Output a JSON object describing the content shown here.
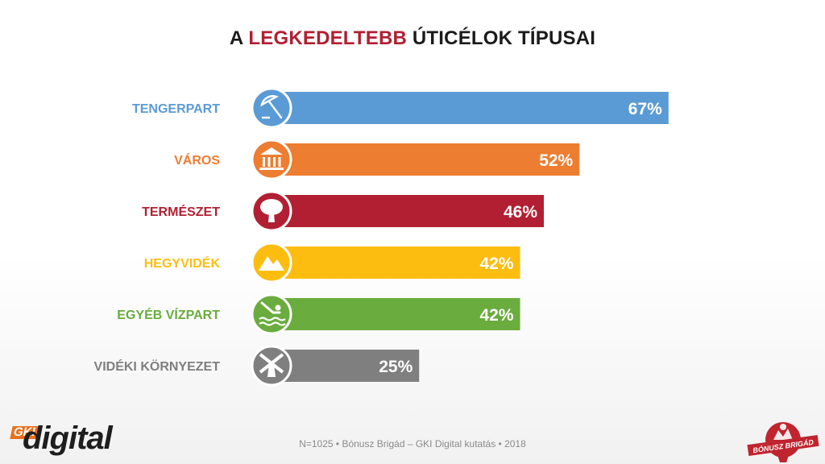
{
  "title": {
    "part1": "A ",
    "highlight": "LEGKEDELTEBB",
    "part2": " ÚTICÉLOK TÍPUSAI"
  },
  "chart_data": {
    "type": "bar",
    "orientation": "horizontal",
    "title": "A LEGKEDELTEBB ÚTICÉLOK TÍPUSAI",
    "categories": [
      "TENGERPART",
      "VÁROS",
      "TERMÉSZET",
      "HEGYVIDÉK",
      "EGYÉB VÍZPART",
      "VIDÉKI KÖRNYEZET"
    ],
    "values": [
      67,
      52,
      46,
      42,
      42,
      25
    ],
    "value_labels": [
      "67%",
      "52%",
      "46%",
      "42%",
      "42%",
      "25%"
    ],
    "colors": [
      "#5b9bd5",
      "#ed7d31",
      "#b21f32",
      "#fdbd10",
      "#6aac3e",
      "#7f7f7f"
    ],
    "icons": [
      "beach-umbrella-icon",
      "city-building-icon",
      "tree-icon",
      "mountain-icon",
      "swimmer-icon",
      "windmill-icon"
    ],
    "xlim": [
      0,
      70
    ],
    "grid": false,
    "legend": "none"
  },
  "footer": {
    "note": "N=1025 • Bónusz Brigád – GKI Digital kutatás • 2018"
  },
  "logos": {
    "left": {
      "gk": "GKI",
      "digital": "digital"
    },
    "right": {
      "text": "BÓNUSZ BRIGÁD"
    }
  }
}
